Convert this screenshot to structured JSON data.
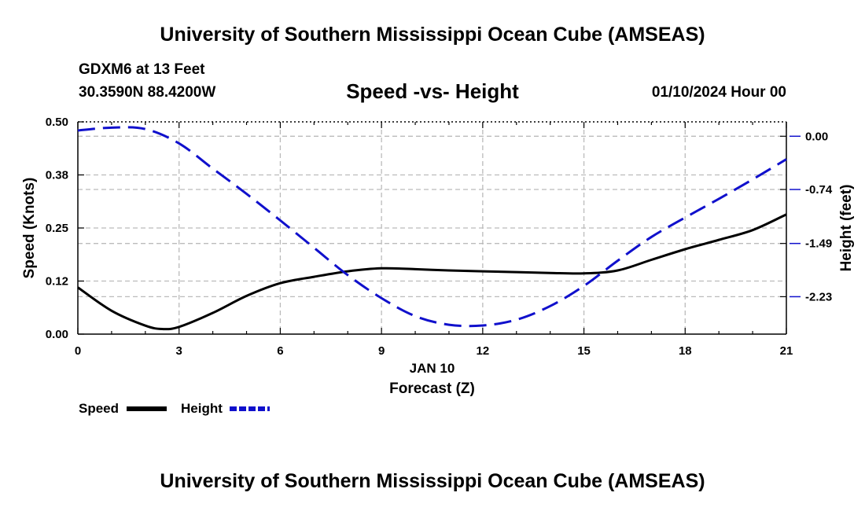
{
  "header": {
    "title": "University of Southern Mississippi Ocean Cube (AMSEAS)",
    "station": "GDXM6 at 13 Feet",
    "coordinates": "30.3590N  88.4200W",
    "subtitle": "Speed -vs- Height",
    "datetime": "01/10/2024 Hour 00"
  },
  "footer": {
    "title": "University of Southern Mississippi Ocean Cube (AMSEAS)"
  },
  "legend": {
    "speed_label": "Speed",
    "height_label": "Height"
  },
  "chart_data": {
    "type": "line",
    "title": "Speed -vs- Height",
    "xlabel": "Forecast (Z)",
    "x_date_label": "JAN 10",
    "xlim": [
      0,
      21
    ],
    "x_ticks": [
      0,
      3,
      6,
      9,
      12,
      15,
      18,
      21
    ],
    "x_tick_labels": [
      "0",
      "3",
      "6",
      "9",
      "12",
      "15",
      "18",
      "21"
    ],
    "y_left": {
      "label": "Speed (Knots)",
      "lim": [
        0,
        0.5
      ],
      "ticks": [
        0,
        0.125,
        0.25,
        0.375,
        0.5
      ],
      "tick_labels": [
        "0.00",
        "0.12",
        "0.25",
        "0.38",
        "0.50"
      ]
    },
    "y_right": {
      "label": "Height (feet)",
      "lim": [
        -2.75,
        0.2
      ],
      "ticks": [
        0,
        -0.74,
        -1.49,
        -2.23
      ],
      "tick_labels": [
        "0.00",
        "-0.74",
        "-1.49",
        "-2.23"
      ]
    },
    "grid": true,
    "legend_position": "bottom-left",
    "series": [
      {
        "name": "Speed",
        "axis": "left",
        "color": "#000000",
        "style": "solid",
        "x": [
          0,
          1,
          2,
          2.5,
          3,
          4,
          5,
          6,
          7,
          8,
          9,
          10,
          11,
          12,
          13,
          14,
          15,
          16,
          17,
          18,
          19,
          20,
          21
        ],
        "values": [
          0.11,
          0.055,
          0.02,
          0.012,
          0.017,
          0.05,
          0.09,
          0.12,
          0.135,
          0.148,
          0.155,
          0.153,
          0.15,
          0.148,
          0.146,
          0.144,
          0.143,
          0.15,
          0.175,
          0.2,
          0.222,
          0.245,
          0.282
        ]
      },
      {
        "name": "Height",
        "axis": "right",
        "color": "#1010cc",
        "style": "dashed",
        "x": [
          0,
          1,
          2,
          3,
          4,
          5,
          6,
          7,
          8,
          9,
          10,
          11,
          12,
          13,
          14,
          15,
          16,
          17,
          18,
          19,
          20,
          21
        ],
        "values": [
          0.08,
          0.12,
          0.1,
          -0.1,
          -0.45,
          -0.8,
          -1.17,
          -1.55,
          -1.93,
          -2.25,
          -2.5,
          -2.62,
          -2.63,
          -2.55,
          -2.36,
          -2.08,
          -1.73,
          -1.4,
          -1.13,
          -0.87,
          -0.6,
          -0.32
        ]
      }
    ]
  }
}
